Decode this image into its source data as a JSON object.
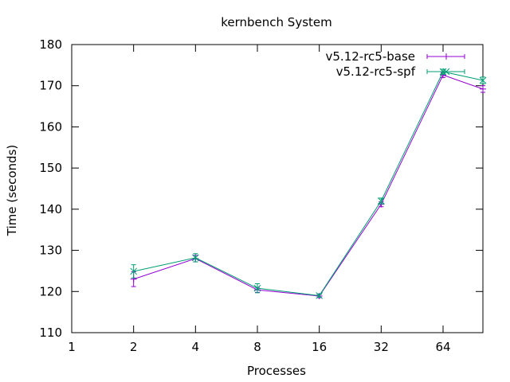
{
  "chart_data": {
    "type": "line",
    "title": "kernbench System",
    "xlabel": "Processes",
    "ylabel": "Time (seconds)",
    "x_scale": "log2",
    "xlim": [
      1,
      100
    ],
    "ylim": [
      110,
      180
    ],
    "x_ticks": [
      1,
      2,
      4,
      8,
      16,
      32,
      64
    ],
    "x_tick_labels": [
      "1",
      "2",
      "4",
      "8",
      "16",
      "32",
      "64"
    ],
    "y_ticks": [
      110,
      120,
      130,
      140,
      150,
      160,
      170,
      180
    ],
    "y_tick_labels": [
      "110",
      "120",
      "130",
      "140",
      "150",
      "160",
      "170",
      "180"
    ],
    "grid": false,
    "legend_position": "top-right",
    "series": [
      {
        "name": "v5.12-rc5-base",
        "color": "#9400d3",
        "marker": "plus",
        "x": [
          2,
          4,
          8,
          16,
          32,
          64,
          100
        ],
        "y": [
          123.0,
          128.0,
          120.4,
          118.9,
          141.2,
          172.6,
          169.2
        ],
        "err": [
          1.8,
          0.8,
          0.6,
          0.4,
          0.6,
          0.6,
          0.8
        ]
      },
      {
        "name": "v5.12-rc5-spf",
        "color": "#009e73",
        "marker": "x",
        "x": [
          2,
          4,
          8,
          16,
          32,
          64,
          100
        ],
        "y": [
          124.9,
          128.2,
          120.8,
          119.0,
          142.0,
          173.4,
          171.3
        ],
        "err": [
          1.6,
          1.0,
          1.1,
          0.4,
          0.7,
          0.6,
          0.8
        ]
      }
    ]
  }
}
